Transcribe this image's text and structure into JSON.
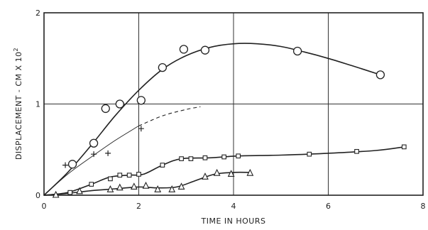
{
  "chart_data": {
    "type": "scatter",
    "xlabel": "TIME IN HOURS",
    "ylabel": "DISPLACEMENT - CM X 10",
    "ylabel_sup": "2",
    "xlim": [
      0,
      8
    ],
    "ylim": [
      0,
      2
    ],
    "xticks": [
      0,
      2,
      4,
      6,
      8
    ],
    "yticks": [
      0,
      1,
      2
    ],
    "grid": true,
    "ink_color": "#222222",
    "series": [
      {
        "marker": "circle",
        "points": [
          [
            0.6,
            0.34
          ],
          [
            1.05,
            0.57
          ],
          [
            1.3,
            0.95
          ],
          [
            1.6,
            1.0
          ],
          [
            2.05,
            1.04
          ],
          [
            2.5,
            1.4
          ],
          [
            2.95,
            1.6
          ],
          [
            3.4,
            1.59
          ],
          [
            5.35,
            1.58
          ],
          [
            7.1,
            1.32
          ]
        ],
        "curve": [
          [
            0,
            0
          ],
          [
            0.5,
            0.25
          ],
          [
            1.0,
            0.55
          ],
          [
            1.5,
            0.87
          ],
          [
            2.0,
            1.15
          ],
          [
            2.5,
            1.38
          ],
          [
            3.0,
            1.53
          ],
          [
            3.5,
            1.62
          ],
          [
            4.0,
            1.66
          ],
          [
            4.5,
            1.66
          ],
          [
            5.0,
            1.63
          ],
          [
            5.5,
            1.57
          ],
          [
            6.0,
            1.5
          ],
          [
            6.5,
            1.42
          ],
          [
            7.1,
            1.32
          ]
        ],
        "curve_style": "solid"
      },
      {
        "marker": "plus",
        "points": [
          [
            0.45,
            0.33
          ],
          [
            1.05,
            0.45
          ],
          [
            1.35,
            0.46
          ],
          [
            2.05,
            0.73
          ]
        ],
        "curve": [
          [
            0,
            0
          ],
          [
            0.5,
            0.23
          ],
          [
            1.0,
            0.42
          ],
          [
            1.5,
            0.6
          ],
          [
            2.0,
            0.76
          ]
        ],
        "curve_style": "thin",
        "curve_ext": [
          [
            2.0,
            0.76
          ],
          [
            2.5,
            0.87
          ],
          [
            3.0,
            0.94
          ],
          [
            3.3,
            0.97
          ]
        ],
        "curve_ext_style": "dashed"
      },
      {
        "marker": "square",
        "points": [
          [
            0.55,
            0.03
          ],
          [
            1.0,
            0.12
          ],
          [
            1.4,
            0.18
          ],
          [
            1.6,
            0.22
          ],
          [
            1.8,
            0.22
          ],
          [
            2.0,
            0.23
          ],
          [
            2.5,
            0.33
          ],
          [
            2.9,
            0.4
          ],
          [
            3.1,
            0.4
          ],
          [
            3.4,
            0.41
          ],
          [
            3.8,
            0.42
          ],
          [
            4.1,
            0.43
          ],
          [
            5.6,
            0.45
          ],
          [
            6.6,
            0.48
          ],
          [
            7.6,
            0.53
          ]
        ],
        "curve": [
          [
            0,
            0
          ],
          [
            0.5,
            0.03
          ],
          [
            1.0,
            0.12
          ],
          [
            1.4,
            0.2
          ],
          [
            1.8,
            0.22
          ],
          [
            2.1,
            0.23
          ],
          [
            2.5,
            0.33
          ],
          [
            2.9,
            0.4
          ],
          [
            3.5,
            0.41
          ],
          [
            4.1,
            0.43
          ],
          [
            5.0,
            0.44
          ],
          [
            6.0,
            0.46
          ],
          [
            7.0,
            0.49
          ],
          [
            7.6,
            0.53
          ]
        ],
        "curve_style": "solid"
      },
      {
        "marker": "triangle",
        "points": [
          [
            0.25,
            0.0
          ],
          [
            0.75,
            0.04
          ],
          [
            1.4,
            0.06
          ],
          [
            1.6,
            0.08
          ],
          [
            1.9,
            0.09
          ],
          [
            2.15,
            0.1
          ],
          [
            2.4,
            0.06
          ],
          [
            2.7,
            0.06
          ],
          [
            2.9,
            0.09
          ],
          [
            3.4,
            0.2
          ],
          [
            3.65,
            0.24
          ],
          [
            3.95,
            0.23
          ],
          [
            4.35,
            0.24
          ]
        ],
        "curve": [
          [
            0,
            0
          ],
          [
            0.5,
            0.02
          ],
          [
            1.0,
            0.05
          ],
          [
            1.5,
            0.07
          ],
          [
            2.0,
            0.09
          ],
          [
            2.4,
            0.08
          ],
          [
            2.8,
            0.09
          ],
          [
            3.2,
            0.16
          ],
          [
            3.6,
            0.23
          ],
          [
            4.0,
            0.25
          ],
          [
            4.35,
            0.25
          ]
        ],
        "curve_style": "solid"
      }
    ]
  }
}
